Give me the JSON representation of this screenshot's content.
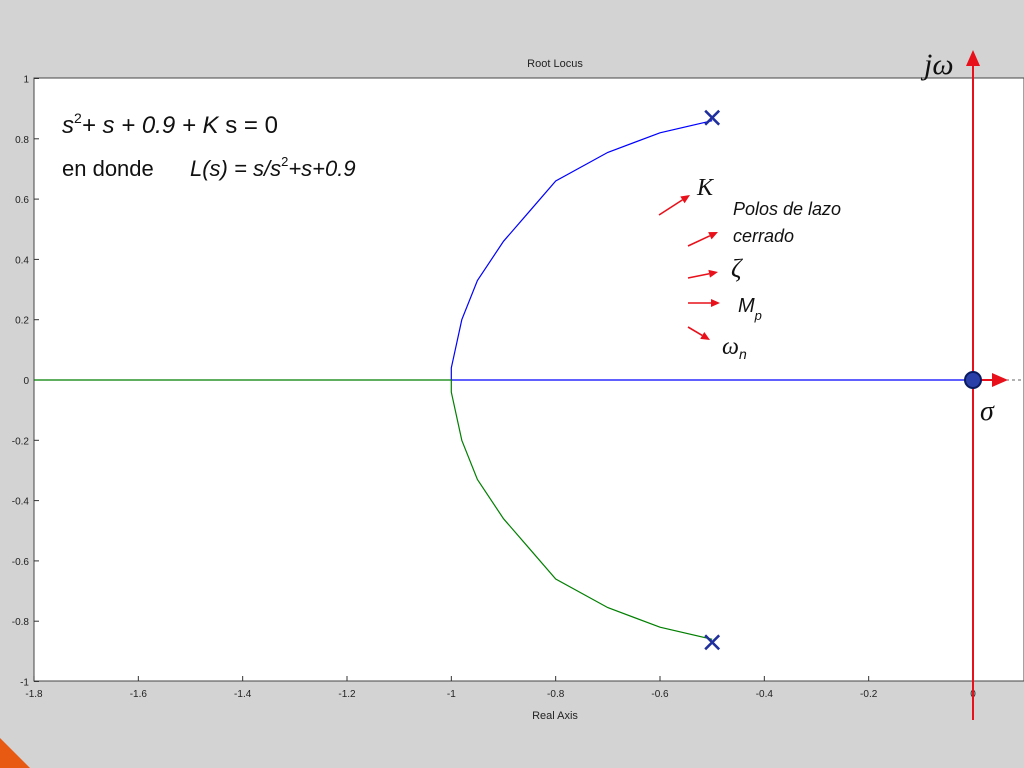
{
  "chart_data": {
    "type": "line",
    "title": "Root Locus",
    "xlabel": "Real Axis",
    "ylabel": "",
    "xlim": [
      -1.8,
      0.1
    ],
    "ylim": [
      -1,
      1
    ],
    "xticks": [
      -1.8,
      -1.6,
      -1.4,
      -1.2,
      -1,
      -0.8,
      -0.6,
      -0.4,
      -0.2,
      0
    ],
    "yticks": [
      -1,
      -0.8,
      -0.6,
      -0.4,
      -0.2,
      0,
      0.2,
      0.4,
      0.6,
      0.8,
      1
    ],
    "grid": false,
    "series": [
      {
        "color": "#0000ff",
        "points": [
          [
            -0.5,
            0.86
          ],
          [
            -0.6,
            0.82
          ],
          [
            -0.7,
            0.755
          ],
          [
            -0.8,
            0.66
          ],
          [
            -0.85,
            0.56
          ],
          [
            -0.9,
            0.46
          ],
          [
            -0.95,
            0.33
          ],
          [
            -0.98,
            0.2
          ],
          [
            -1.0,
            0.04
          ],
          [
            -1.0,
            0.0
          ],
          [
            -0.5,
            0.0
          ],
          [
            0.0,
            0.0
          ]
        ]
      },
      {
        "color": "#007f00",
        "points": [
          [
            -0.5,
            -0.86
          ],
          [
            -0.6,
            -0.82
          ],
          [
            -0.7,
            -0.755
          ],
          [
            -0.8,
            -0.66
          ],
          [
            -0.85,
            -0.56
          ],
          [
            -0.9,
            -0.46
          ],
          [
            -0.95,
            -0.33
          ],
          [
            -0.98,
            -0.2
          ],
          [
            -1.0,
            -0.04
          ],
          [
            -1.0,
            0.0
          ],
          [
            -1.3,
            0.0
          ],
          [
            -1.8,
            0.0
          ]
        ]
      }
    ],
    "poles": [
      [
        -0.5,
        0.87
      ],
      [
        -0.5,
        -0.87
      ]
    ],
    "zeros": [
      [
        0.0,
        0.0
      ]
    ]
  },
  "annotations": {
    "equation_main": "s",
    "equation_sup": "2",
    "equation_rest": "+ s + 0.9 + ",
    "equation_k": "K",
    "equation_end": " s = 0",
    "en_donde": "en donde",
    "l_of_s": "L(s) = s/s",
    "l_sup": "2",
    "l_rest": "+s+0.9",
    "label_k": "K",
    "label_polos_1": "Polos de lazo",
    "label_polos_2": "cerrado",
    "label_zeta": "ζ",
    "label_mp": "M",
    "label_mp_sub": "p",
    "label_omega": "ω",
    "label_omega_sub": "n",
    "label_jw": "jω",
    "label_sigma": "σ"
  },
  "colors": {
    "accent_red": "#e8101a",
    "blue_branch": "#0000ff",
    "green_branch": "#007f00",
    "pole_marker": "#1f2f9e",
    "zero_marker": "#2a3fa8",
    "slide_orange": "#e85a12"
  }
}
